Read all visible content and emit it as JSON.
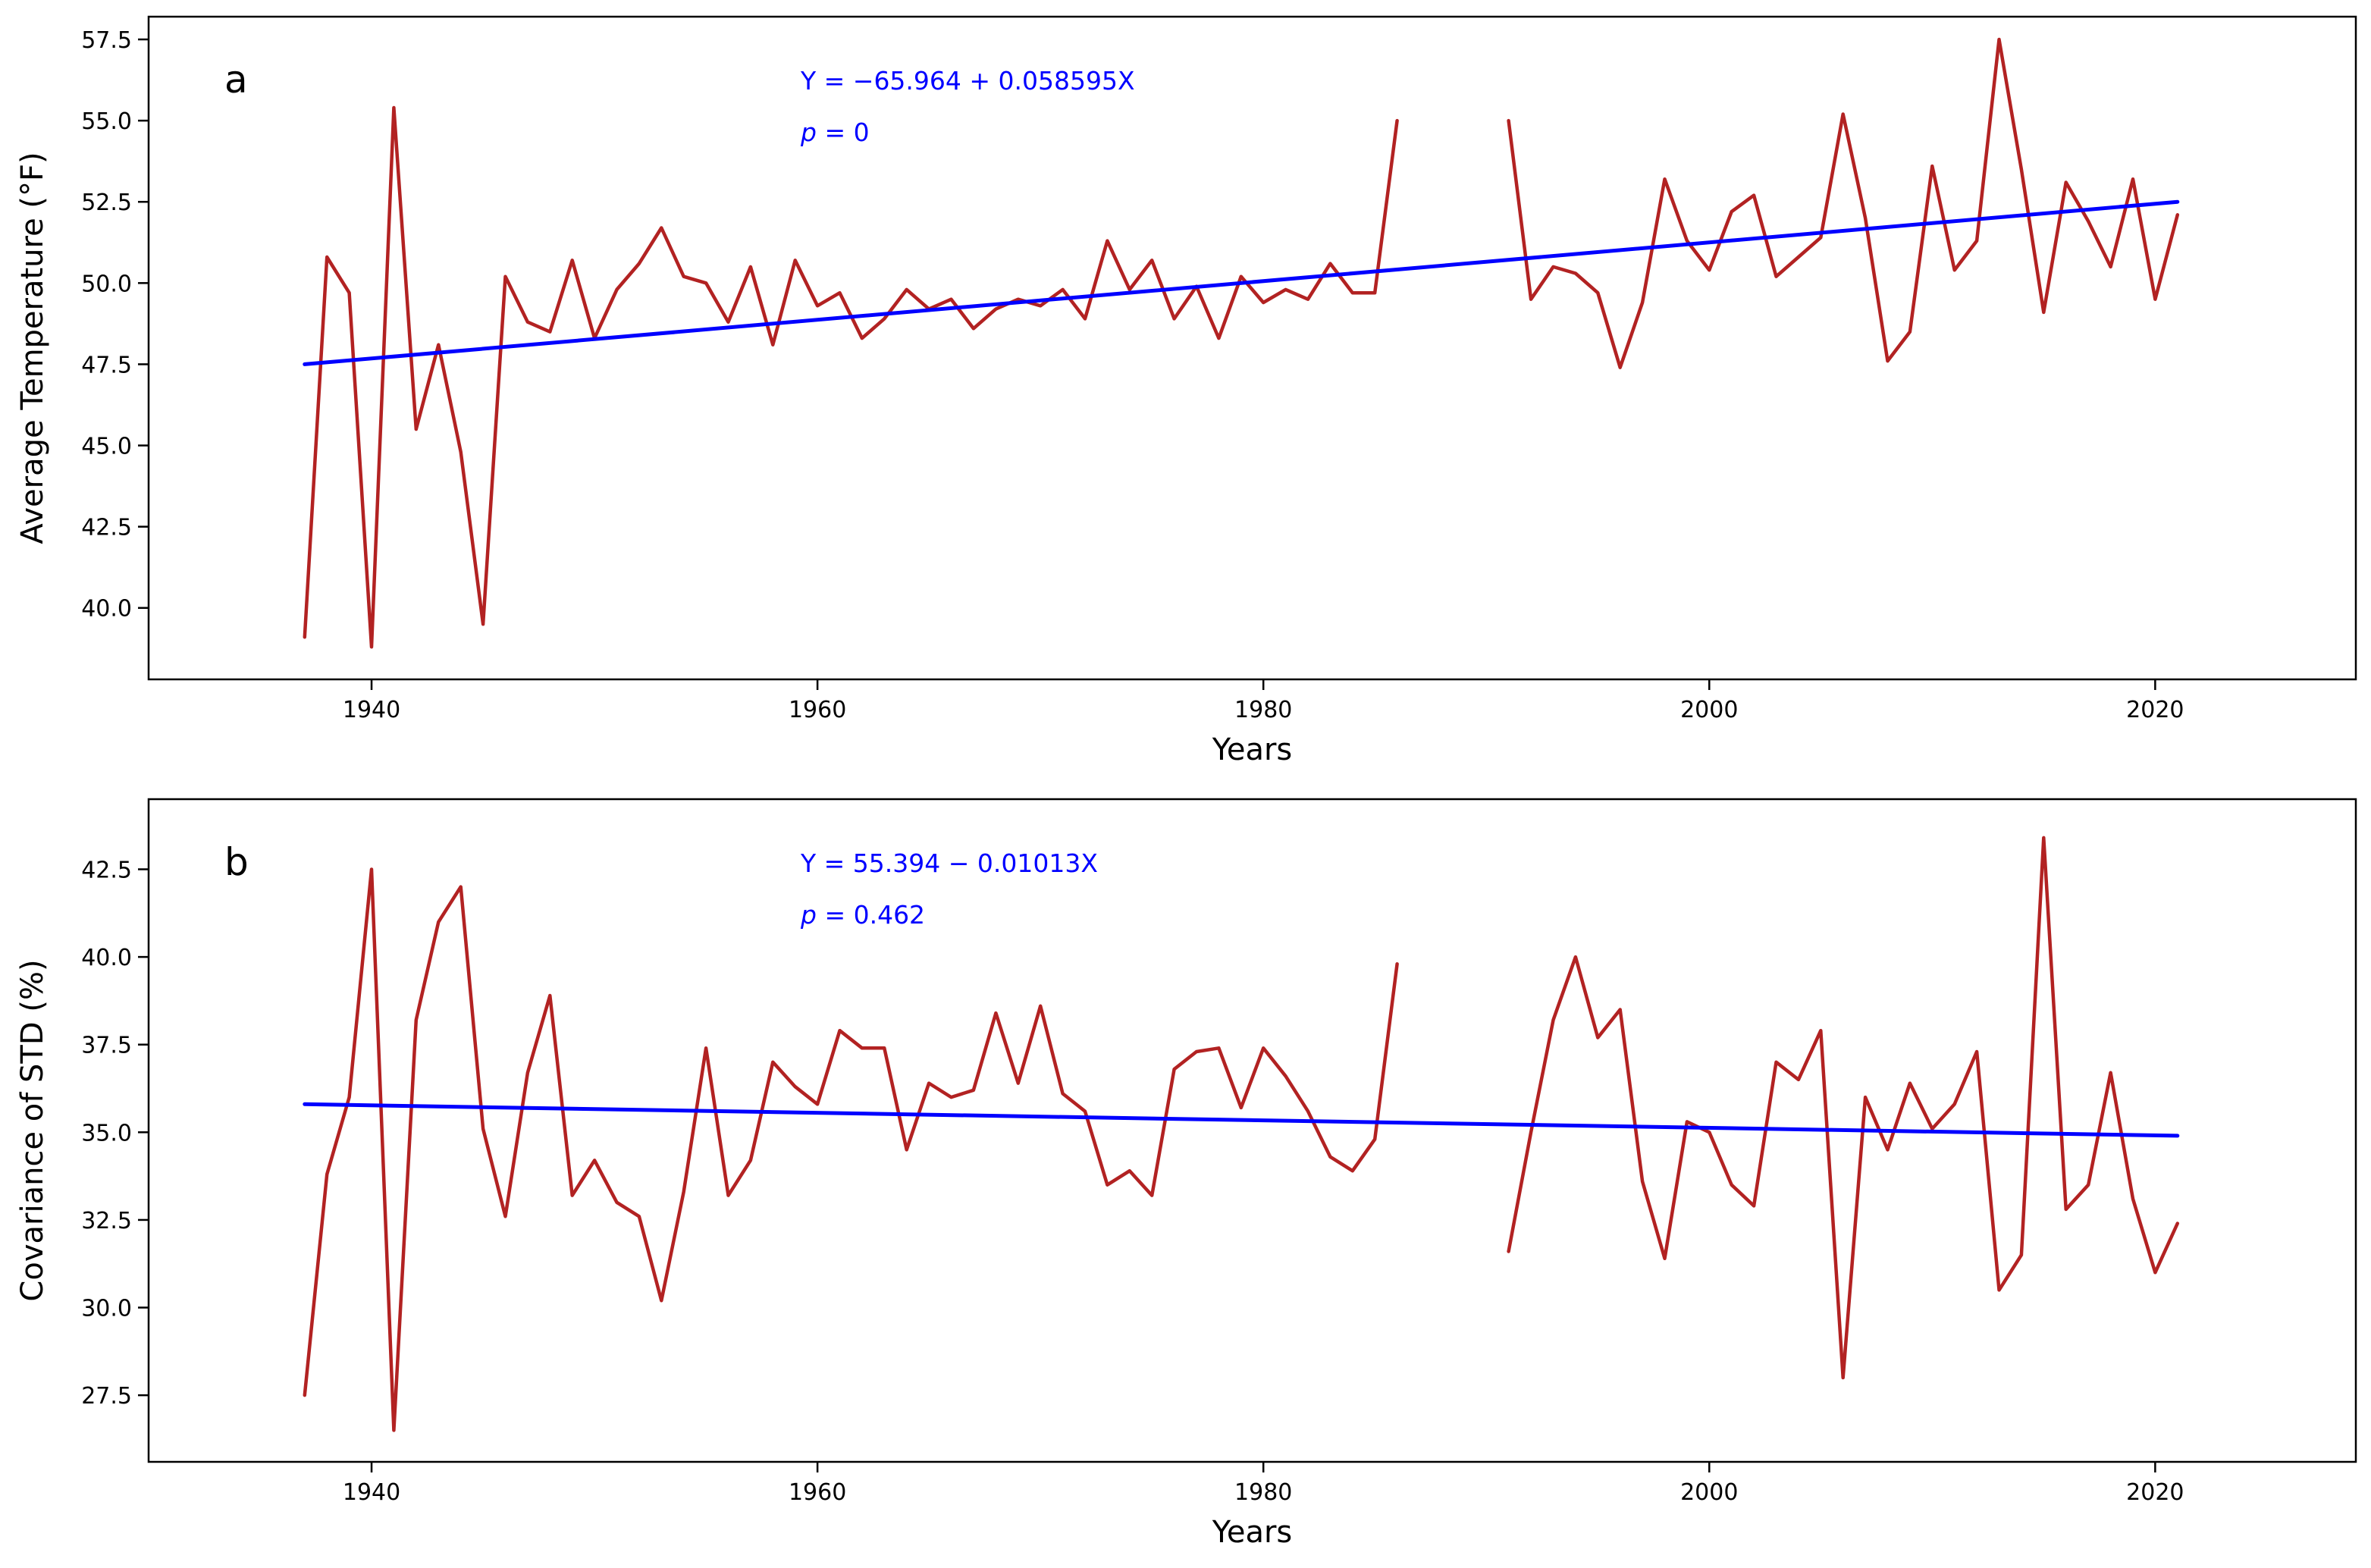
{
  "chart_data": [
    {
      "type": "line",
      "panel_label": "a",
      "xlabel": "Years",
      "ylabel": "Average Temperature (°F)",
      "xlim": [
        1930,
        2029
      ],
      "ylim": [
        37.8,
        58.2
      ],
      "x_ticks": [
        1940,
        1960,
        1980,
        2000,
        2020
      ],
      "y_ticks": [
        40.0,
        42.5,
        45.0,
        47.5,
        50.0,
        52.5,
        55.0,
        57.5
      ],
      "annotation": {
        "equation": "Y = −65.964 + 0.058595X",
        "p_label": "p",
        "p_value": "= 0"
      },
      "series": [
        {
          "name": "Average Temperature",
          "color": "#b22222",
          "x": [
            1937,
            1938,
            1939,
            1940,
            1941,
            1942,
            1943,
            1944,
            1945,
            1946,
            1947,
            1948,
            1949,
            1950,
            1951,
            1952,
            1953,
            1954,
            1955,
            1956,
            1957,
            1958,
            1959,
            1960,
            1961,
            1962,
            1963,
            1964,
            1965,
            1966,
            1967,
            1968,
            1969,
            1970,
            1971,
            1972,
            1973,
            1974,
            1975,
            1976,
            1977,
            1978,
            1979,
            1980,
            1981,
            1982,
            1983,
            1984,
            1985,
            1986,
            1987,
            1988,
            1989,
            1990,
            1991,
            1992,
            1993,
            1994,
            1995,
            1996,
            1997,
            1998,
            1999,
            2000,
            2001,
            2002,
            2003,
            2004,
            2005,
            2006,
            2007,
            2008,
            2009,
            2010,
            2011,
            2012,
            2013,
            2014,
            2015,
            2016,
            2017,
            2018,
            2019,
            2020,
            2021
          ],
          "values": [
            39.1,
            50.8,
            49.7,
            38.8,
            55.4,
            45.5,
            48.1,
            44.8,
            39.5,
            50.2,
            48.8,
            48.5,
            50.7,
            48.3,
            49.8,
            50.6,
            51.7,
            50.2,
            50.0,
            48.8,
            50.5,
            48.1,
            50.7,
            49.3,
            49.7,
            48.3,
            48.9,
            49.8,
            49.2,
            49.5,
            48.6,
            49.2,
            49.5,
            49.3,
            49.8,
            48.9,
            51.3,
            49.8,
            50.7,
            48.9,
            49.9,
            48.3,
            50.2,
            49.4,
            49.8,
            49.5,
            50.6,
            49.7,
            49.7,
            55.0,
            null,
            null,
            null,
            null,
            55.0,
            49.5,
            50.5,
            50.3,
            49.7,
            47.4,
            49.4,
            53.2,
            51.3,
            50.4,
            52.2,
            52.7,
            50.2,
            50.8,
            51.4,
            55.2,
            52.0,
            47.6,
            48.5,
            53.6,
            50.4,
            51.3,
            57.5,
            53.5,
            49.1,
            53.1,
            51.9,
            50.5,
            53.2,
            49.5,
            52.1
          ]
        },
        {
          "name": "Linear fit",
          "color": "#0000ff",
          "x": [
            1937,
            2021
          ],
          "values": [
            47.5,
            52.5
          ]
        }
      ]
    },
    {
      "type": "line",
      "panel_label": "b",
      "xlabel": "Years",
      "ylabel": "Covariance of STD (%)",
      "xlim": [
        1930,
        2029
      ],
      "ylim": [
        25.6,
        44.5
      ],
      "x_ticks": [
        1940,
        1960,
        1980,
        2000,
        2020
      ],
      "y_ticks": [
        27.5,
        30.0,
        32.5,
        35.0,
        37.5,
        40.0,
        42.5
      ],
      "annotation": {
        "equation": "Y = 55.394 − 0.01013X",
        "p_label": "p",
        "p_value": "= 0.462"
      },
      "series": [
        {
          "name": "Covariance of STD",
          "color": "#b22222",
          "x": [
            1937,
            1938,
            1939,
            1940,
            1941,
            1942,
            1943,
            1944,
            1945,
            1946,
            1947,
            1948,
            1949,
            1950,
            1951,
            1952,
            1953,
            1954,
            1955,
            1956,
            1957,
            1958,
            1959,
            1960,
            1961,
            1962,
            1963,
            1964,
            1965,
            1966,
            1967,
            1968,
            1969,
            1970,
            1971,
            1972,
            1973,
            1974,
            1975,
            1976,
            1977,
            1978,
            1979,
            1980,
            1981,
            1982,
            1983,
            1984,
            1985,
            1986,
            1987,
            1988,
            1989,
            1990,
            1991,
            1992,
            1993,
            1994,
            1995,
            1996,
            1997,
            1998,
            1999,
            2000,
            2001,
            2002,
            2003,
            2004,
            2005,
            2006,
            2007,
            2008,
            2009,
            2010,
            2011,
            2012,
            2013,
            2014,
            2015,
            2016,
            2017,
            2018,
            2019,
            2020,
            2021
          ],
          "values": [
            27.5,
            33.8,
            36.0,
            42.5,
            26.5,
            38.2,
            41.0,
            42.0,
            35.1,
            32.6,
            36.7,
            38.9,
            33.2,
            34.2,
            33.0,
            32.6,
            30.2,
            33.3,
            37.4,
            33.2,
            34.2,
            37.0,
            36.3,
            35.8,
            37.9,
            37.4,
            37.4,
            34.5,
            36.4,
            36.0,
            36.2,
            38.4,
            36.4,
            38.6,
            36.1,
            35.6,
            33.5,
            33.9,
            33.2,
            36.8,
            37.3,
            37.4,
            35.7,
            37.4,
            36.6,
            35.6,
            34.3,
            33.9,
            34.8,
            39.8,
            null,
            null,
            null,
            null,
            31.6,
            35.0,
            38.2,
            40.0,
            37.7,
            38.5,
            33.6,
            31.4,
            35.3,
            35.0,
            33.5,
            32.9,
            37.0,
            36.5,
            37.9,
            28.0,
            36.0,
            34.5,
            36.4,
            35.1,
            35.8,
            37.3,
            30.5,
            31.5,
            43.4,
            32.8,
            33.5,
            36.7,
            33.1,
            31.0,
            32.4
          ]
        },
        {
          "name": "Linear fit",
          "color": "#0000ff",
          "x": [
            1937,
            2021
          ],
          "values": [
            35.8,
            34.9
          ]
        }
      ]
    }
  ]
}
